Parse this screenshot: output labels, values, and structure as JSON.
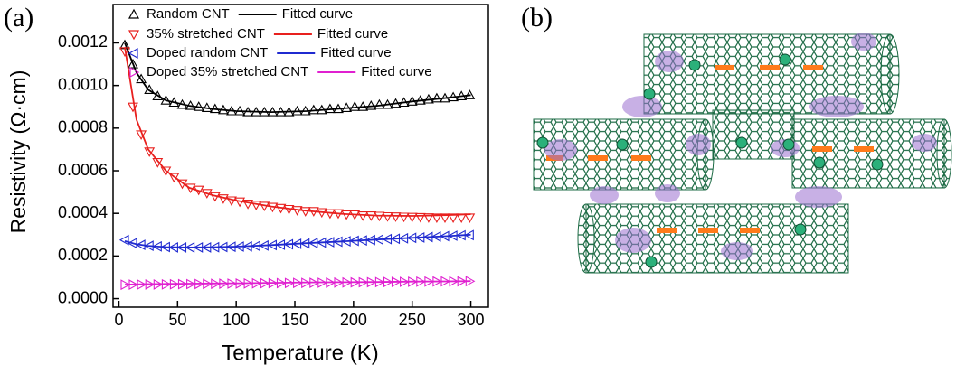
{
  "chart_data": {
    "type": "scatter",
    "panel_label": "(a)",
    "panel_b_label": "(b)",
    "x_label": "Temperature (K)",
    "y_label": "Resistivity (Ω·cm)",
    "xlim": [
      -5,
      315
    ],
    "ylim": [
      -4e-05,
      0.00138
    ],
    "xticks": [
      0,
      50,
      100,
      150,
      200,
      250,
      300
    ],
    "yticks": [
      {
        "value": 0,
        "label": "0.0000"
      },
      {
        "value": 0.0002,
        "label": "0.0002"
      },
      {
        "value": 0.0004,
        "label": "0.0004"
      },
      {
        "value": 0.0006,
        "label": "0.0006"
      },
      {
        "value": 0.0008,
        "label": "0.0008"
      },
      {
        "value": 0.001,
        "label": "0.0010"
      },
      {
        "value": 0.0012,
        "label": "0.0012"
      }
    ],
    "x": [
      5,
      12,
      19,
      26,
      33,
      40,
      47,
      54,
      61,
      68,
      75,
      82,
      89,
      96,
      103,
      110,
      117,
      124,
      131,
      138,
      145,
      152,
      159,
      166,
      173,
      180,
      187,
      194,
      201,
      208,
      215,
      222,
      229,
      236,
      243,
      250,
      257,
      264,
      271,
      278,
      285,
      292,
      299
    ],
    "series": [
      {
        "name": "Random CNT",
        "color": "#000000",
        "style": "markers",
        "marker": "up",
        "values": [
          0.00119,
          0.0011,
          0.00103,
          0.00098,
          0.00095,
          0.00093,
          0.00092,
          0.00091,
          0.000905,
          0.0009,
          0.000895,
          0.00089,
          0.000885,
          0.00088,
          0.00088,
          0.000875,
          0.000875,
          0.000875,
          0.000875,
          0.000875,
          0.000875,
          0.00088,
          0.00088,
          0.000885,
          0.000885,
          0.00089,
          0.00089,
          0.000895,
          0.0009,
          0.0009,
          0.000905,
          0.00091,
          0.00091,
          0.000915,
          0.00092,
          0.000925,
          0.00093,
          0.000935,
          0.00094,
          0.00094,
          0.000945,
          0.00095,
          0.000955
        ]
      },
      {
        "name": "Fitted curve",
        "color": "#000000",
        "style": "line",
        "x": [
          5,
          15,
          25,
          40,
          60,
          80,
          100,
          130,
          160,
          190,
          220,
          250,
          280,
          300
        ],
        "values": [
          0.0012,
          0.00106,
          0.00098,
          0.00093,
          0.000905,
          0.00089,
          0.00088,
          0.000875,
          0.00088,
          0.000892,
          0.000905,
          0.000925,
          0.000942,
          0.000955
        ]
      },
      {
        "name": "35% stretched CNT",
        "color": "#e8201e",
        "style": "markers",
        "marker": "down",
        "values": [
          0.00116,
          0.0009,
          0.00077,
          0.00069,
          0.00064,
          0.0006,
          0.00057,
          0.00054,
          0.00052,
          0.00051,
          0.000495,
          0.00048,
          0.00047,
          0.00046,
          0.000455,
          0.000445,
          0.00044,
          0.000435,
          0.00043,
          0.000425,
          0.00042,
          0.000415,
          0.00041,
          0.00041,
          0.000405,
          0.0004,
          0.0004,
          0.000395,
          0.000395,
          0.00039,
          0.00039,
          0.000388,
          0.000386,
          0.000385,
          0.000384,
          0.000383,
          0.000382,
          0.000381,
          0.00038,
          0.00038,
          0.00038,
          0.00038,
          0.00038
        ]
      },
      {
        "name": "Fitted curve",
        "color": "#e8201e",
        "style": "line",
        "x": [
          5,
          15,
          25,
          40,
          60,
          80,
          100,
          130,
          160,
          190,
          220,
          250,
          280,
          300
        ],
        "values": [
          0.00118,
          0.00084,
          0.0007,
          0.0006,
          0.00052,
          0.000485,
          0.00046,
          0.000432,
          0.000412,
          0.000398,
          0.00039,
          0.000388,
          0.000392,
          0.000396
        ]
      },
      {
        "name": "Doped random CNT",
        "color": "#1f2ad0",
        "style": "markers",
        "marker": "left",
        "values": [
          0.000275,
          0.00026,
          0.000252,
          0.000248,
          0.000245,
          0.000242,
          0.00024,
          0.00024,
          0.00024,
          0.00024,
          0.00024,
          0.000241,
          0.000242,
          0.000243,
          0.000244,
          0.000245,
          0.000247,
          0.000249,
          0.000251,
          0.000253,
          0.000255,
          0.000257,
          0.000259,
          0.000261,
          0.000263,
          0.000265,
          0.000267,
          0.000269,
          0.000271,
          0.000273,
          0.000275,
          0.000277,
          0.000279,
          0.000281,
          0.000283,
          0.000285,
          0.000287,
          0.000289,
          0.000291,
          0.000293,
          0.000295,
          0.000297,
          0.000298
        ]
      },
      {
        "name": "Fitted curve",
        "color": "#1f2ad0",
        "style": "line",
        "x": [
          5,
          15,
          25,
          40,
          60,
          80,
          100,
          130,
          160,
          190,
          220,
          250,
          280,
          300
        ],
        "values": [
          0.00027,
          0.000255,
          0.000248,
          0.000242,
          0.00024,
          0.000241,
          0.000244,
          0.000251,
          0.00026,
          0.000268,
          0.000277,
          0.000285,
          0.000293,
          0.0003
        ]
      },
      {
        "name": "Doped 35% stretched CNT",
        "color": "#e020d0",
        "style": "markers",
        "marker": "right",
        "values": [
          6.5e-05,
          6.54e-05,
          6.58e-05,
          6.62e-05,
          6.66e-05,
          6.7e-05,
          6.74e-05,
          6.78e-05,
          6.82e-05,
          6.86e-05,
          6.9e-05,
          6.94e-05,
          6.98e-05,
          7.02e-05,
          7.06e-05,
          7.1e-05,
          7.14e-05,
          7.18e-05,
          7.22e-05,
          7.26e-05,
          7.3e-05,
          7.34e-05,
          7.38e-05,
          7.42e-05,
          7.46e-05,
          7.5e-05,
          7.54e-05,
          7.58e-05,
          7.62e-05,
          7.66e-05,
          7.7e-05,
          7.74e-05,
          7.78e-05,
          7.82e-05,
          7.86e-05,
          7.9e-05,
          7.94e-05,
          7.98e-05,
          8.02e-05,
          8.06e-05,
          8.1e-05,
          8.14e-05,
          8.18e-05
        ]
      },
      {
        "name": "Fitted curve",
        "color": "#e020d0",
        "style": "line",
        "x": [
          5,
          15,
          25,
          40,
          60,
          80,
          100,
          130,
          160,
          190,
          220,
          250,
          280,
          300
        ],
        "values": [
          6.6e-05,
          6.7e-05,
          6.8e-05,
          6.9e-05,
          7e-05,
          7.1e-05,
          7.2e-05,
          7.4e-05,
          7.6e-05,
          7.7e-05,
          7.8e-05,
          8e-05,
          8.1e-05,
          8.2e-05
        ]
      }
    ]
  }
}
